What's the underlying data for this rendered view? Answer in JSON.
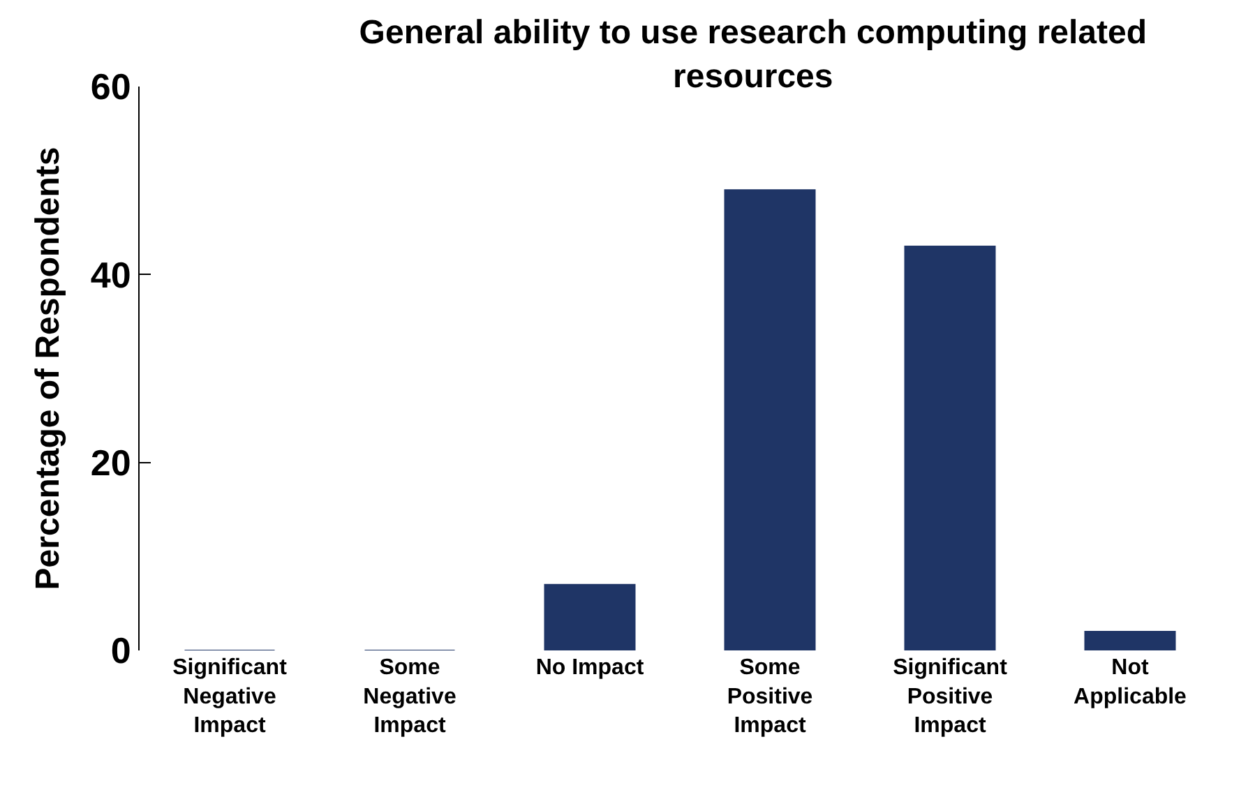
{
  "chart_data": {
    "type": "bar",
    "title": "General ability to use research computing related resources",
    "ylabel": "Percentage of Respondents",
    "categories": [
      "Significant Negative Impact",
      "Some Negative Impact",
      "No Impact",
      "Some Positive Impact",
      "Significant Positive Impact",
      "Not Applicable"
    ],
    "values": [
      0,
      0,
      7,
      49,
      43,
      2
    ],
    "color": "#1f3566",
    "ylim": [
      0,
      60
    ],
    "yticks": [
      0,
      20,
      40,
      60
    ]
  }
}
